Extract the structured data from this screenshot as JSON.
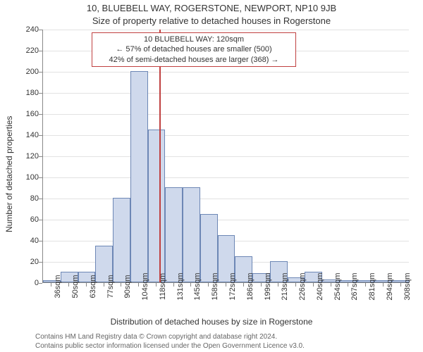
{
  "title_line1": "10, BLUEBELL WAY, ROGERSTONE, NEWPORT, NP10 9JB",
  "title_line2": "Size of property relative to detached houses in Rogerstone",
  "y_axis_label": "Number of detached properties",
  "x_axis_label": "Distribution of detached houses by size in Rogerstone",
  "footer_line1": "Contains HM Land Registry data © Crown copyright and database right 2024.",
  "footer_line2": "Contains public sector information licensed under the Open Government Licence v3.0.",
  "chart": {
    "type": "histogram",
    "ylim": [
      0,
      240
    ],
    "ytick_step": 20,
    "yticks": [
      0,
      20,
      40,
      60,
      80,
      100,
      120,
      140,
      160,
      180,
      200,
      220,
      240
    ],
    "x_categories": [
      "36sqm",
      "50sqm",
      "63sqm",
      "77sqm",
      "90sqm",
      "104sqm",
      "118sqm",
      "131sqm",
      "145sqm",
      "158sqm",
      "172sqm",
      "186sqm",
      "199sqm",
      "213sqm",
      "226sqm",
      "240sqm",
      "254sqm",
      "267sqm",
      "281sqm",
      "294sqm",
      "308sqm"
    ],
    "values": [
      2,
      10,
      10,
      35,
      80,
      200,
      145,
      90,
      90,
      65,
      45,
      25,
      9,
      20,
      5,
      10,
      3,
      2,
      2,
      2,
      2
    ],
    "bar_fill": "#cfd9ec",
    "bar_stroke": "#6d87b5",
    "background_color": "#ffffff",
    "grid_color": "#e2e2e2",
    "axis_color": "#888888",
    "marker_x_value": 120,
    "marker_color": "#c04040",
    "annotation": {
      "line1": "10 BLUEBELL WAY: 120sqm",
      "line2": "← 57% of detached houses are smaller (500)",
      "line3": "42% of semi-detached houses are larger (368) →",
      "border_color": "#c04040",
      "bg_color": "#ffffff"
    },
    "title_fontsize": 13,
    "label_fontsize": 12,
    "tick_fontsize": 11
  }
}
